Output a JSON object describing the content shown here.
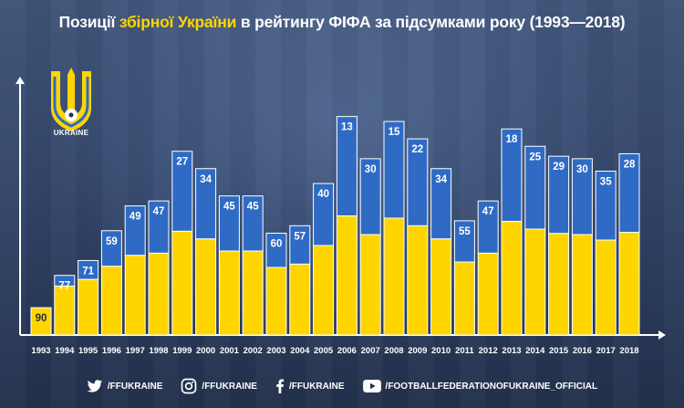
{
  "title": {
    "prefix": "Позиції",
    "highlight": "збірної України",
    "suffix": "в рейтингу ФІФА за підсумками року (1993—2018)"
  },
  "logo": {
    "text": "UKRAINE"
  },
  "colors": {
    "blue": "#2f6bc4",
    "yellow": "#ffd500",
    "axis": "#ffffff"
  },
  "chart_data": {
    "type": "bar",
    "title": "Позиції збірної України в рейтингу ФІФА за підсумками року (1993—2018)",
    "xlabel": "",
    "ylabel": "",
    "inverted": true,
    "categories": [
      "1993",
      "1994",
      "1995",
      "1996",
      "1997",
      "1998",
      "1999",
      "2000",
      "2001",
      "2002",
      "2003",
      "2004",
      "2005",
      "2006",
      "2007",
      "2008",
      "2009",
      "2010",
      "2011",
      "2012",
      "2013",
      "2014",
      "2015",
      "2016",
      "2017",
      "2018"
    ],
    "values": [
      90,
      77,
      71,
      59,
      49,
      47,
      27,
      34,
      45,
      45,
      60,
      57,
      40,
      13,
      30,
      15,
      22,
      34,
      55,
      47,
      18,
      25,
      29,
      30,
      35,
      28
    ]
  },
  "footer": {
    "twitter": "/FFUKRAINE",
    "instagram": "/FFUKRAINE",
    "facebook": "/FFUKRAINE",
    "youtube": "/FOOTBALLFEDERATIONOFUKRAINE_OFFICIAL"
  }
}
